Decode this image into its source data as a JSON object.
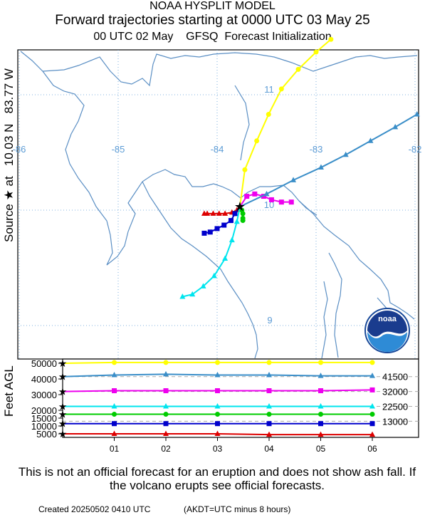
{
  "header": {
    "model": "NOAA HYSPLIT MODEL",
    "title": "Forward trajectories starting at 0000 UTC 03 May 25",
    "subtitle": "00 UTC 02 May    GFSQ  Forecast Initialization"
  },
  "source_label": "Source ★ at   10.03 N   83.77 W",
  "logo_text": "noaa",
  "footer": {
    "disclaimer": "This is not an official forecast for an eruption and does not show ash fall. If the volcano erupts see official forecasts.",
    "created": "Created 20250502 0410 UTC",
    "tz_note": "(AKDT=UTC minus 8 hours)"
  },
  "colors": {
    "red": "#dd0000",
    "blue": "#0000cc",
    "green": "#00cc00",
    "cyan": "#00e5ee",
    "magenta": "#ee00ee",
    "steel": "#3a8ec8",
    "yellow": "#ffff00",
    "gridline": "#5b9bd5",
    "coast": "#5b8fc4"
  },
  "chart_data": [
    {
      "type": "line",
      "name": "map",
      "source": {
        "lat": 10.03,
        "lon": -83.77
      },
      "lon_ticks": [
        "-86",
        "-85",
        "-84",
        "-83",
        "-82"
      ],
      "lat_ticks": [
        "11",
        "10",
        "9"
      ],
      "series": [
        {
          "color": "red",
          "marker": "triangle",
          "points": [
            [
              -83.77,
              10.03
            ],
            [
              -83.8,
              10.0
            ],
            [
              -83.85,
              9.98
            ],
            [
              -83.92,
              9.97
            ],
            [
              -83.98,
              9.97
            ],
            [
              -84.04,
              9.97
            ],
            [
              -84.1,
              9.97
            ],
            [
              -84.13,
              9.97
            ]
          ]
        },
        {
          "color": "blue",
          "marker": "square",
          "points": [
            [
              -83.77,
              10.03
            ],
            [
              -83.82,
              9.97
            ],
            [
              -83.86,
              9.91
            ],
            [
              -83.93,
              9.87
            ],
            [
              -84.0,
              9.84
            ],
            [
              -84.07,
              9.81
            ],
            [
              -84.13,
              9.8
            ]
          ]
        },
        {
          "color": "green",
          "marker": "circle",
          "points": [
            [
              -83.77,
              10.03
            ],
            [
              -83.75,
              10.0
            ],
            [
              -83.74,
              9.97
            ],
            [
              -83.74,
              9.93
            ],
            [
              -83.74,
              9.91
            ]
          ]
        },
        {
          "color": "cyan",
          "marker": "triangle",
          "points": [
            [
              -83.77,
              10.03
            ],
            [
              -83.8,
              9.9
            ],
            [
              -83.85,
              9.74
            ],
            [
              -83.92,
              9.58
            ],
            [
              -84.03,
              9.43
            ],
            [
              -84.14,
              9.34
            ],
            [
              -84.25,
              9.27
            ],
            [
              -84.35,
              9.25
            ]
          ]
        },
        {
          "color": "magenta",
          "marker": "square",
          "points": [
            [
              -83.77,
              10.03
            ],
            [
              -83.7,
              10.12
            ],
            [
              -83.62,
              10.14
            ],
            [
              -83.53,
              10.12
            ],
            [
              -83.45,
              10.09
            ],
            [
              -83.35,
              10.07
            ],
            [
              -83.25,
              10.07
            ]
          ]
        },
        {
          "color": "steel",
          "marker": "triangle",
          "points": [
            [
              -83.77,
              10.03
            ],
            [
              -83.5,
              10.14
            ],
            [
              -83.23,
              10.26
            ],
            [
              -82.95,
              10.37
            ],
            [
              -82.7,
              10.48
            ],
            [
              -82.45,
              10.6
            ],
            [
              -82.2,
              10.72
            ],
            [
              -81.98,
              10.83
            ]
          ]
        },
        {
          "color": "yellow",
          "marker": "circle",
          "points": [
            [
              -83.77,
              10.03
            ],
            [
              -83.72,
              10.35
            ],
            [
              -83.6,
              10.6
            ],
            [
              -83.48,
              10.83
            ],
            [
              -83.35,
              11.05
            ],
            [
              -83.18,
              11.22
            ],
            [
              -83.0,
              11.37
            ],
            [
              -82.85,
              11.48
            ]
          ]
        }
      ]
    },
    {
      "type": "line",
      "name": "height",
      "ylabel": "Feet AGL",
      "x_ticks": [
        "01",
        "02",
        "03",
        "04",
        "05",
        "06"
      ],
      "y_ticks": [
        5000,
        10000,
        15000,
        20000,
        30000,
        40000,
        50000
      ],
      "y_ticks_text": [
        "5000",
        "10000",
        "15000",
        "20000",
        "30000",
        "40000",
        "50000"
      ],
      "level_labels": [
        "41500",
        "32000",
        "22500",
        "13000"
      ],
      "dashed_levels": [
        41500,
        32000,
        22500,
        13000
      ],
      "series": [
        {
          "color": "yellow",
          "marker": "circle",
          "values": [
            50000,
            50500,
            50500,
            50500,
            50500,
            50500,
            50500
          ]
        },
        {
          "color": "steel",
          "marker": "triangle",
          "values": [
            41500,
            42500,
            43000,
            42500,
            42500,
            42000,
            42000
          ]
        },
        {
          "color": "magenta",
          "marker": "square",
          "values": [
            32000,
            32500,
            32500,
            32500,
            32500,
            32500,
            33000
          ]
        },
        {
          "color": "cyan",
          "marker": "triangle",
          "values": [
            22500,
            22500,
            22500,
            22500,
            22500,
            22500,
            22500
          ]
        },
        {
          "color": "green",
          "marker": "circle",
          "values": [
            17500,
            17500,
            17500,
            17500,
            17500,
            17500,
            17500
          ]
        },
        {
          "color": "blue",
          "marker": "square",
          "values": [
            11500,
            11500,
            11500,
            11500,
            11500,
            11500,
            11500
          ]
        },
        {
          "color": "red",
          "marker": "triangle",
          "values": [
            5000,
            5000,
            5000,
            5000,
            4500,
            4500,
            4500
          ]
        }
      ]
    }
  ]
}
